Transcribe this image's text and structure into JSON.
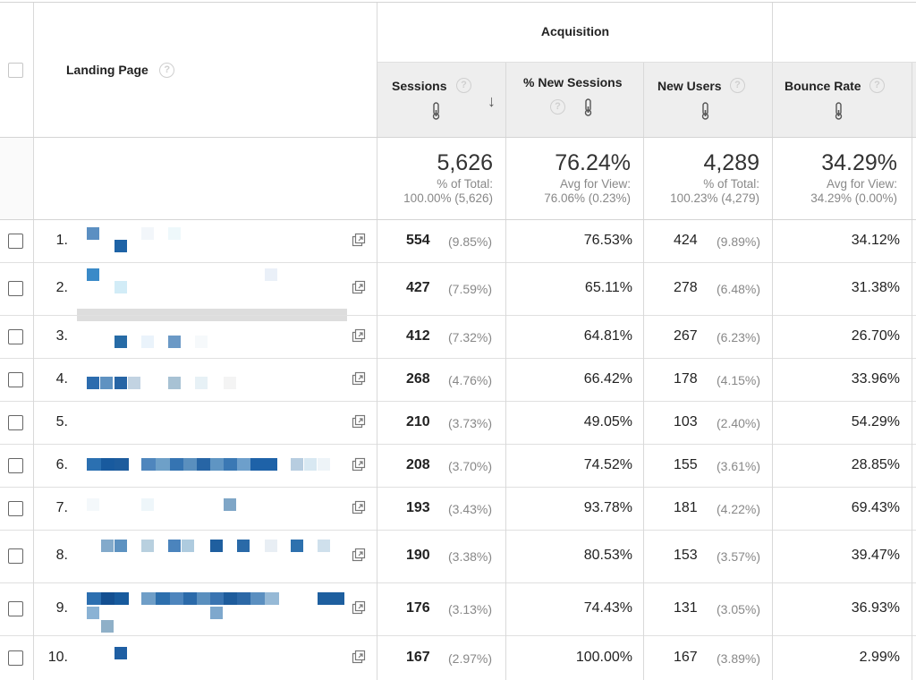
{
  "header": {
    "acquisition_label": "Acquisition",
    "landing_page_label": "Landing Page",
    "help_glyph": "?",
    "columns": [
      {
        "label": "Sessions",
        "sorted": "descending"
      },
      {
        "label": "% New Sessions"
      },
      {
        "label": "New Users"
      },
      {
        "label": "Bounce Rate"
      }
    ]
  },
  "totals": {
    "sessions": {
      "value": "5,626",
      "line1": "% of Total:",
      "line2": "100.00% (5,626)"
    },
    "new_sessions": {
      "value": "76.24%",
      "line1": "Avg for View:",
      "line2": "76.06% (0.23%)"
    },
    "new_users": {
      "value": "4,289",
      "line1": "% of Total:",
      "line2": "100.23% (4,279)"
    },
    "bounce_rate": {
      "value": "34.29%",
      "line1": "Avg for View:",
      "line2": "34.29% (0.00%)"
    }
  },
  "rows": [
    {
      "num": "1.",
      "sessions": "554",
      "sessions_pct": "(9.85%)",
      "new_sessions": "76.53%",
      "new_users": "424",
      "new_users_pct": "(9.89%)",
      "bounce_rate": "34.12%"
    },
    {
      "num": "2.",
      "sessions": "427",
      "sessions_pct": "(7.59%)",
      "new_sessions": "65.11%",
      "new_users": "278",
      "new_users_pct": "(6.48%)",
      "bounce_rate": "31.38%"
    },
    {
      "num": "3.",
      "sessions": "412",
      "sessions_pct": "(7.32%)",
      "new_sessions": "64.81%",
      "new_users": "267",
      "new_users_pct": "(6.23%)",
      "bounce_rate": "26.70%"
    },
    {
      "num": "4.",
      "sessions": "268",
      "sessions_pct": "(4.76%)",
      "new_sessions": "66.42%",
      "new_users": "178",
      "new_users_pct": "(4.15%)",
      "bounce_rate": "33.96%"
    },
    {
      "num": "5.",
      "sessions": "210",
      "sessions_pct": "(3.73%)",
      "new_sessions": "49.05%",
      "new_users": "103",
      "new_users_pct": "(2.40%)",
      "bounce_rate": "54.29%"
    },
    {
      "num": "6.",
      "sessions": "208",
      "sessions_pct": "(3.70%)",
      "new_sessions": "74.52%",
      "new_users": "155",
      "new_users_pct": "(3.61%)",
      "bounce_rate": "28.85%"
    },
    {
      "num": "7.",
      "sessions": "193",
      "sessions_pct": "(3.43%)",
      "new_sessions": "93.78%",
      "new_users": "181",
      "new_users_pct": "(4.22%)",
      "bounce_rate": "69.43%"
    },
    {
      "num": "8.",
      "sessions": "190",
      "sessions_pct": "(3.38%)",
      "new_sessions": "80.53%",
      "new_users": "153",
      "new_users_pct": "(3.57%)",
      "bounce_rate": "39.47%"
    },
    {
      "num": "9.",
      "sessions": "176",
      "sessions_pct": "(3.13%)",
      "new_sessions": "74.43%",
      "new_users": "131",
      "new_users_pct": "(3.05%)",
      "bounce_rate": "36.93%"
    },
    {
      "num": "10.",
      "sessions": "167",
      "sessions_pct": "(2.97%)",
      "new_sessions": "100.00%",
      "new_users": "167",
      "new_users_pct": "(3.89%)",
      "bounce_rate": "2.99%"
    }
  ],
  "colors": {
    "header_bg": "#eeeeee",
    "border": "#d9d9d9",
    "muted_text": "#888888",
    "pixel_dark": "#1b62a6",
    "pixel_mid": "#3d86c6",
    "pixel_light": "#cfe6f5"
  },
  "icons": {
    "row_link": "open-in-new-window-icon",
    "header_metric": "thermometer-icon",
    "sort": "arrow-down-icon",
    "help": "question-circle-icon"
  }
}
